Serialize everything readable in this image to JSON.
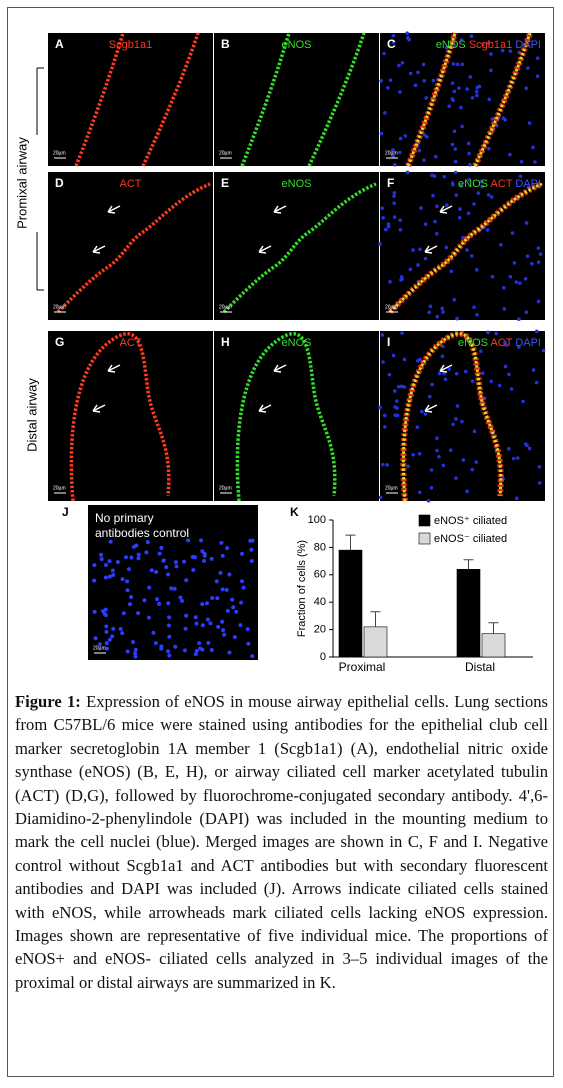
{
  "figure": {
    "side_labels": [
      "Promixal airway",
      "Distal airway"
    ],
    "scale_bar": "20µm",
    "panels": [
      {
        "letter": "A",
        "stains": [
          {
            "text": "Scgb1a1",
            "color": "#ff3a1f"
          }
        ]
      },
      {
        "letter": "B",
        "stains": [
          {
            "text": "eNOS",
            "color": "#33dd2a"
          }
        ]
      },
      {
        "letter": "C",
        "stains": [
          {
            "text": "eNOS",
            "color": "#33dd2a"
          },
          {
            "text": "Scgb1a1",
            "color": "#ff3a1f"
          },
          {
            "text": "DAPI",
            "color": "#3a55ff"
          }
        ]
      },
      {
        "letter": "D",
        "stains": [
          {
            "text": "ACT",
            "color": "#ff3a1f"
          }
        ]
      },
      {
        "letter": "E",
        "stains": [
          {
            "text": "eNOS",
            "color": "#33dd2a"
          }
        ]
      },
      {
        "letter": "F",
        "stains": [
          {
            "text": "eNOS",
            "color": "#33dd2a"
          },
          {
            "text": "ACT",
            "color": "#ff3a1f"
          },
          {
            "text": "DAPI",
            "color": "#3a55ff"
          }
        ]
      },
      {
        "letter": "G",
        "stains": [
          {
            "text": "ACT",
            "color": "#ff3a1f"
          }
        ]
      },
      {
        "letter": "H",
        "stains": [
          {
            "text": "eNOS",
            "color": "#33dd2a"
          }
        ]
      },
      {
        "letter": "I",
        "stains": [
          {
            "text": "eNOS",
            "color": "#33dd2a"
          },
          {
            "text": "ACT",
            "color": "#ff3a1f"
          },
          {
            "text": "DAPI",
            "color": "#3a55ff"
          }
        ]
      }
    ],
    "panel_j": {
      "letter": "J",
      "lines": [
        "No primary",
        "antibodies control"
      ]
    },
    "panel_k": {
      "letter": "K"
    },
    "caption": {
      "label": "Figure 1:",
      "text": "Expression of eNOS in mouse airway epithelial cells. Lung sections from C57BL/6 mice were stained using antibodies for the epithelial club cell marker secretoglobin 1A member 1 (Scgb1a1) (A), endothelial nitric oxide synthase (eNOS) (B, E, H), or airway ciliated cell marker acetylated tubulin (ACT) (D,G), followed by fluorochrome-conjugated secondary antibody. 4',6-Diamidino-2-phenylindole (DAPI) was included in the mounting medium to mark the cell nuclei (blue). Merged images are shown in C, F and I. Negative control without Scgb1a1 and ACT antibodies but with secondary fluorescent antibodies and DAPI was included (J). Arrows indicate ciliated cells stained with eNOS, while arrowheads mark ciliated cells lacking eNOS expression. Images shown are representative of five individual mice. The proportions of eNOS+ and eNOS- ciliated cells analyzed in 3–5 individual images of the proximal or distal airways are summarized in K."
    }
  },
  "chart_data": {
    "type": "bar",
    "y_label": "Fraction of cells (%)",
    "categories": [
      "Proximal",
      "Distal"
    ],
    "series": [
      {
        "name": "eNOS⁺ ciliated",
        "color": "#000000",
        "values": [
          78,
          64
        ],
        "errors": [
          11,
          7
        ]
      },
      {
        "name": "eNOS⁻ ciliated",
        "color": "#d9d9d9",
        "values": [
          22,
          17
        ],
        "errors": [
          11,
          8
        ]
      }
    ],
    "ylim": [
      0,
      100
    ],
    "yticks": [
      0,
      20,
      40,
      60,
      80,
      100
    ],
    "legend": "top-right"
  }
}
